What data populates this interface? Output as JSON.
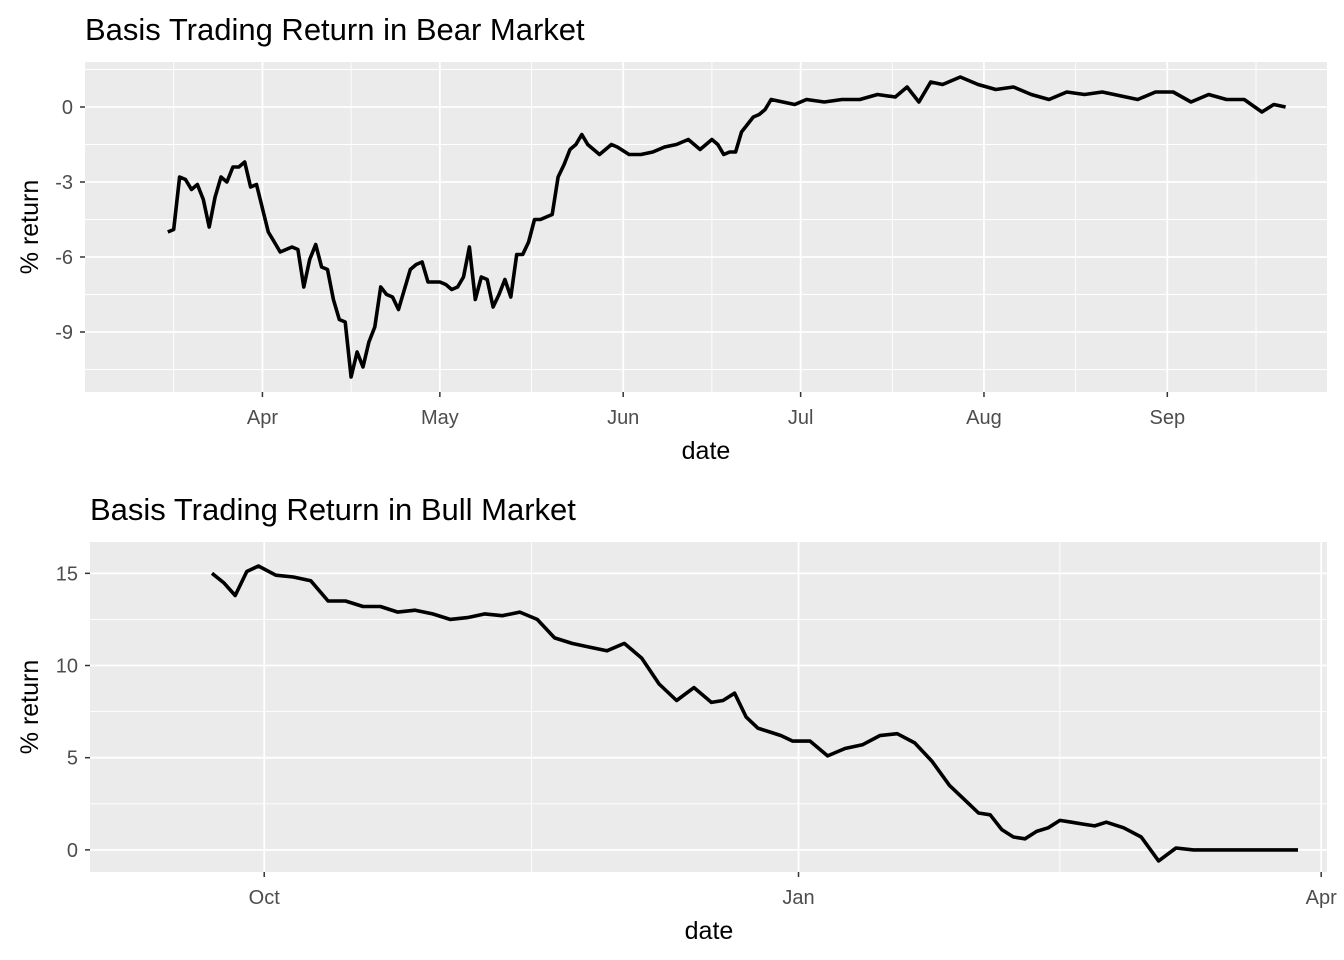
{
  "chart_data": [
    {
      "type": "line",
      "title": "Basis Trading Return in Bear Market",
      "xlabel": "date",
      "ylabel": "% return",
      "x_tick_labels": [
        "Apr",
        "May",
        "Jun",
        "Jul",
        "Aug",
        "Sep"
      ],
      "y_tick_labels": [
        "-9",
        "-6",
        "-3",
        "0"
      ],
      "y_ticks": [
        -9,
        -6,
        -3,
        0
      ],
      "ylim": [
        -11.4,
        1.8
      ],
      "grid": true,
      "line_color": "#000000",
      "background": "#ebebeb",
      "series": [
        {
          "x": [
            "Mar 16",
            "Mar 17",
            "Mar 18",
            "Mar 19",
            "Mar 20",
            "Mar 21",
            "Mar 22",
            "Mar 23",
            "Mar 24",
            "Mar 25",
            "Mar 26",
            "Mar 27",
            "Mar 28",
            "Mar 29",
            "Mar 30",
            "Mar 31",
            "Apr 02",
            "Apr 03",
            "Apr 04",
            "Apr 05",
            "Apr 06",
            "Apr 07",
            "Apr 08",
            "Apr 09",
            "Apr 10",
            "Apr 11",
            "Apr 12",
            "Apr 13",
            "Apr 14",
            "Apr 15",
            "Apr 16",
            "Apr 17",
            "Apr 18",
            "Apr 19",
            "Apr 20",
            "Apr 21",
            "Apr 22",
            "Apr 23",
            "Apr 24",
            "Apr 25",
            "Apr 26",
            "Apr 27",
            "Apr 28",
            "Apr 29",
            "Apr 30",
            "May 01",
            "May 02",
            "May 03",
            "May 04",
            "May 05",
            "May 06",
            "May 07",
            "May 08",
            "May 09",
            "May 10",
            "May 11",
            "May 12",
            "May 13",
            "May 14",
            "May 15",
            "May 16",
            "May 17",
            "May 18",
            "May 19",
            "May 20",
            "May 21",
            "May 22",
            "May 23",
            "May 24",
            "May 25",
            "May 26",
            "May 27",
            "May 28",
            "May 29",
            "May 30",
            "May 31",
            "Jun 02",
            "Jun 04",
            "Jun 06",
            "Jun 08",
            "Jun 10",
            "Jun 12",
            "Jun 14",
            "Jun 15",
            "Jun 16",
            "Jun 17",
            "Jun 18",
            "Jun 19",
            "Jun 20",
            "Jun 21",
            "Jun 22",
            "Jun 23",
            "Jun 24",
            "Jun 25",
            "Jun 26",
            "Jun 28",
            "Jun 30",
            "Jul 02",
            "Jul 05",
            "Jul 08",
            "Jul 11",
            "Jul 14",
            "Jul 17",
            "Jul 19",
            "Jul 21",
            "Jul 23",
            "Jul 25",
            "Jul 28",
            "Jul 31",
            "Aug 03",
            "Aug 06",
            "Aug 09",
            "Aug 12",
            "Aug 15",
            "Aug 18",
            "Aug 21",
            "Aug 23",
            "Aug 25",
            "Aug 27",
            "Aug 30",
            "Sep 02",
            "Sep 05",
            "Sep 08",
            "Sep 11",
            "Sep 14",
            "Sep 17",
            "Sep 19",
            "Sep 21"
          ],
          "y": [
            -5.0,
            -4.9,
            -2.8,
            -2.9,
            -3.3,
            -3.1,
            -3.7,
            -4.8,
            -3.6,
            -2.8,
            -3.0,
            -2.4,
            -2.4,
            -2.2,
            -3.2,
            -3.1,
            -5.0,
            -5.4,
            -5.8,
            -5.7,
            -5.6,
            -5.7,
            -7.2,
            -6.1,
            -5.5,
            -6.4,
            -6.5,
            -7.7,
            -8.5,
            -8.6,
            -10.8,
            -9.8,
            -10.4,
            -9.4,
            -8.8,
            -7.2,
            -7.5,
            -7.6,
            -8.1,
            -7.3,
            -6.5,
            -6.3,
            -6.2,
            -7.0,
            -7.0,
            -7.0,
            -7.1,
            -7.3,
            -7.2,
            -6.8,
            -5.6,
            -7.7,
            -6.8,
            -6.9,
            -8.0,
            -7.5,
            -6.9,
            -7.6,
            -5.9,
            -5.9,
            -5.4,
            -4.5,
            -4.5,
            -4.4,
            -4.3,
            -2.8,
            -2.3,
            -1.7,
            -1.5,
            -1.1,
            -1.5,
            -1.7,
            -1.9,
            -1.7,
            -1.5,
            -1.6,
            -1.9,
            -1.9,
            -1.8,
            -1.6,
            -1.5,
            -1.3,
            -1.7,
            -1.5,
            -1.3,
            -1.5,
            -1.9,
            -1.8,
            -1.8,
            -1.0,
            -0.7,
            -0.4,
            -0.3,
            -0.1,
            0.3,
            0.2,
            0.1,
            0.3,
            0.2,
            0.3,
            0.3,
            0.5,
            0.4,
            0.8,
            0.2,
            1.0,
            0.9,
            1.2,
            0.9,
            0.7,
            0.8,
            0.5,
            0.3,
            0.6,
            0.5,
            0.6,
            0.5,
            0.4,
            0.3,
            0.6,
            0.6,
            0.2,
            0.5,
            0.3,
            0.3,
            -0.2,
            0.1,
            0.0
          ]
        }
      ]
    },
    {
      "type": "line",
      "title": "Basis Trading Return in Bull Market",
      "xlabel": "date",
      "ylabel": "% return",
      "x_tick_labels": [
        "Oct",
        "Jan",
        "Apr"
      ],
      "y_tick_labels": [
        "0",
        "5",
        "10",
        "15"
      ],
      "y_ticks": [
        0,
        5,
        10,
        15
      ],
      "ylim": [
        -1.2,
        16.7
      ],
      "grid": true,
      "line_color": "#000000",
      "background": "#ebebeb",
      "series": [
        {
          "x": [
            "Sep 22",
            "Sep 24",
            "Sep 26",
            "Sep 28",
            "Sep 30",
            "Oct 03",
            "Oct 06",
            "Oct 09",
            "Oct 12",
            "Oct 15",
            "Oct 18",
            "Oct 21",
            "Oct 24",
            "Oct 27",
            "Oct 30",
            "Nov 02",
            "Nov 05",
            "Nov 08",
            "Nov 11",
            "Nov 14",
            "Nov 17",
            "Nov 20",
            "Nov 23",
            "Nov 26",
            "Nov 29",
            "Dec 02",
            "Dec 05",
            "Dec 08",
            "Dec 11",
            "Dec 14",
            "Dec 17",
            "Dec 19",
            "Dec 21",
            "Dec 23",
            "Dec 25",
            "Dec 27",
            "Dec 29",
            "Dec 31",
            "Jan 03",
            "Jan 06",
            "Jan 09",
            "Jan 12",
            "Jan 15",
            "Jan 18",
            "Jan 21",
            "Jan 24",
            "Jan 27",
            "Jan 30",
            "Feb 01",
            "Feb 03",
            "Feb 05",
            "Feb 07",
            "Feb 09",
            "Feb 11",
            "Feb 13",
            "Feb 15",
            "Feb 17",
            "Feb 19",
            "Feb 21",
            "Feb 23",
            "Feb 26",
            "Mar 01",
            "Mar 04",
            "Mar 07",
            "Mar 10",
            "Mar 13",
            "Mar 16",
            "Mar 19",
            "Mar 22",
            "Mar 25",
            "Mar 28"
          ],
          "y": [
            15.0,
            14.5,
            13.8,
            15.1,
            15.4,
            14.9,
            14.8,
            14.6,
            13.5,
            13.5,
            13.2,
            13.2,
            12.9,
            13.0,
            12.8,
            12.5,
            12.6,
            12.8,
            12.7,
            12.9,
            12.5,
            11.5,
            11.2,
            11.0,
            10.8,
            11.2,
            10.4,
            9.0,
            8.1,
            8.8,
            8.0,
            8.1,
            8.5,
            7.2,
            6.6,
            6.4,
            6.2,
            5.9,
            5.9,
            5.1,
            5.5,
            5.7,
            6.2,
            6.3,
            5.8,
            4.8,
            3.5,
            2.6,
            2.0,
            1.9,
            1.1,
            0.7,
            0.6,
            1.0,
            1.2,
            1.6,
            1.5,
            1.4,
            1.3,
            1.5,
            1.2,
            0.7,
            -0.6,
            0.1,
            0.0,
            0.0,
            0.0,
            0.0,
            0.0,
            0.0,
            0.0
          ]
        }
      ]
    }
  ]
}
